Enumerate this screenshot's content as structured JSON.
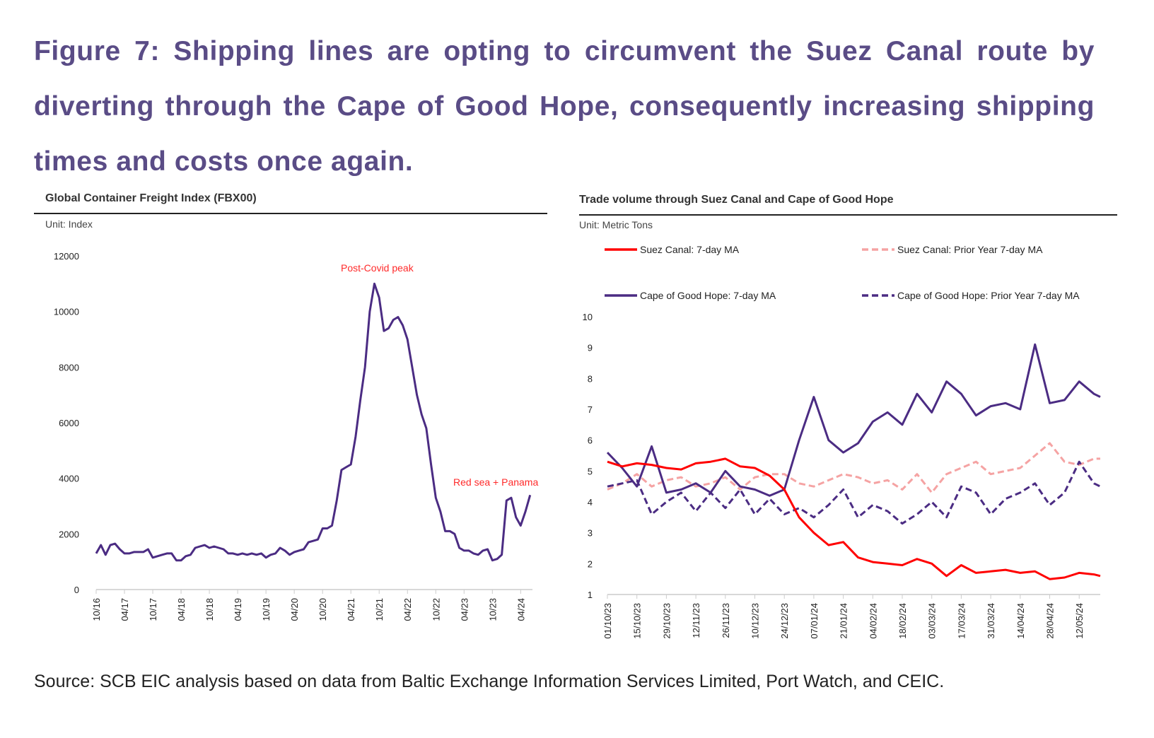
{
  "figure_title": "Figure 7: Shipping lines are opting to circumvent the Suez Canal route by diverting through the Cape of Good Hope, consequently increasing shipping times and costs once again.",
  "source": "Source: SCB EIC analysis based on data from Baltic Exchange Information Services Limited, Port Watch, and CEIC.",
  "colors": {
    "title": "#5a4c86",
    "purple": "#4b2c83",
    "red": "#ff0000",
    "pink": "#f5a3a3",
    "annotation": "#ff2a2a"
  },
  "chart_data": [
    {
      "type": "line",
      "title": "Global Container Freight Index (FBX00)",
      "unit": "Unit: Index",
      "ylim": [
        0,
        12000
      ],
      "yticks": [
        "0",
        "2000",
        "4000",
        "6000",
        "8000",
        "10000",
        "12000"
      ],
      "xticks": [
        "10/16",
        "04/17",
        "10/17",
        "04/18",
        "10/18",
        "04/19",
        "10/19",
        "04/20",
        "10/20",
        "04/21",
        "10/21",
        "04/22",
        "10/22",
        "04/23",
        "10/23",
        "04/24"
      ],
      "grid": false,
      "annotations": [
        {
          "text": "Post-Covid peak"
        },
        {
          "text": "Red sea + Panama"
        }
      ],
      "series": [
        {
          "color": "#4b2c83",
          "start": "2016-10",
          "values": [
            1300,
            1600,
            1250,
            1600,
            1650,
            1450,
            1300,
            1300,
            1350,
            1350,
            1350,
            1450,
            1150,
            1200,
            1250,
            1300,
            1300,
            1050,
            1050,
            1200,
            1250,
            1500,
            1550,
            1600,
            1500,
            1550,
            1500,
            1450,
            1300,
            1300,
            1250,
            1300,
            1250,
            1300,
            1250,
            1300,
            1150,
            1250,
            1300,
            1500,
            1400,
            1250,
            1350,
            1400,
            1450,
            1700,
            1750,
            1800,
            2200,
            2200,
            2300,
            3200,
            4300,
            4400,
            4500,
            5500,
            6800,
            8000,
            10000,
            11000,
            10500,
            9300,
            9400,
            9700,
            9800,
            9500,
            9000,
            8000,
            7000,
            6300,
            5800,
            4500,
            3300,
            2800,
            2100,
            2100,
            2000,
            1500,
            1400,
            1400,
            1300,
            1250,
            1400,
            1450,
            1050,
            1100,
            1250,
            3200,
            3300,
            2600,
            2300,
            2800,
            3400
          ]
        }
      ]
    },
    {
      "type": "line",
      "title": "Trade volume through Suez Canal and Cape of Good Hope",
      "unit": "Unit: Metric Tons",
      "ylim": [
        1,
        10
      ],
      "yticks": [
        "1",
        "2",
        "3",
        "4",
        "5",
        "6",
        "7",
        "8",
        "9",
        "10"
      ],
      "xticks": [
        "01/10/23",
        "15/10/23",
        "29/10/23",
        "12/11/23",
        "26/11/23",
        "10/12/23",
        "24/12/23",
        "07/01/24",
        "21/01/24",
        "04/02/24",
        "18/02/24",
        "03/03/24",
        "17/03/24",
        "31/03/24",
        "14/04/24",
        "28/04/24",
        "12/05/24"
      ],
      "grid": false,
      "legend": "top",
      "x": [
        "01/10/23",
        "08/10/23",
        "15/10/23",
        "22/10/23",
        "29/10/23",
        "05/11/23",
        "12/11/23",
        "19/11/23",
        "26/11/23",
        "03/12/23",
        "10/12/23",
        "17/12/23",
        "24/12/23",
        "31/12/23",
        "07/01/24",
        "14/01/24",
        "21/01/24",
        "28/01/24",
        "04/02/24",
        "11/02/24",
        "18/02/24",
        "25/02/24",
        "03/03/24",
        "10/03/24",
        "17/03/24",
        "24/03/24",
        "31/03/24",
        "07/04/24",
        "14/04/24",
        "21/04/24",
        "28/04/24",
        "05/05/24",
        "12/05/24",
        "19/05/24",
        "22/05/24"
      ],
      "series": [
        {
          "name": "Suez Canal: 7-day MA",
          "color": "#ff0000",
          "dash": false,
          "values": [
            5.3,
            5.15,
            5.25,
            5.2,
            5.1,
            5.05,
            5.25,
            5.3,
            5.4,
            5.15,
            5.1,
            4.85,
            4.4,
            3.5,
            3.0,
            2.6,
            2.7,
            2.2,
            2.05,
            2.0,
            1.95,
            2.15,
            2.0,
            1.6,
            1.95,
            1.7,
            1.75,
            1.8,
            1.7,
            1.75,
            1.5,
            1.55,
            1.7,
            1.65,
            1.6
          ]
        },
        {
          "name": "Suez Canal: Prior Year 7-day MA",
          "color": "#f5a3a3",
          "dash": true,
          "values": [
            4.4,
            4.6,
            4.9,
            4.5,
            4.7,
            4.8,
            4.5,
            4.6,
            4.8,
            4.4,
            4.8,
            4.9,
            4.9,
            4.6,
            4.5,
            4.7,
            4.9,
            4.8,
            4.6,
            4.7,
            4.4,
            4.9,
            4.3,
            4.9,
            5.1,
            5.3,
            4.9,
            5.0,
            5.1,
            5.5,
            5.9,
            5.3,
            5.2,
            5.4,
            5.4
          ]
        },
        {
          "name": "Cape of Good Hope: 7-day MA",
          "color": "#4b2c83",
          "dash": false,
          "values": [
            5.6,
            5.1,
            4.5,
            5.8,
            4.3,
            4.4,
            4.6,
            4.3,
            5.0,
            4.5,
            4.4,
            4.2,
            4.4,
            6.0,
            7.4,
            6.0,
            5.6,
            5.9,
            6.6,
            6.9,
            6.5,
            7.5,
            6.9,
            7.9,
            7.5,
            6.8,
            7.1,
            7.2,
            7.0,
            9.1,
            7.2,
            7.3,
            7.9,
            7.5,
            7.4
          ]
        },
        {
          "name": "Cape of Good Hope: Prior Year 7-day MA",
          "color": "#4b2c83",
          "dash": true,
          "values": [
            4.5,
            4.6,
            4.7,
            3.6,
            4.0,
            4.3,
            3.7,
            4.3,
            3.8,
            4.4,
            3.6,
            4.1,
            3.6,
            3.8,
            3.5,
            3.9,
            4.4,
            3.5,
            3.9,
            3.7,
            3.3,
            3.6,
            4.0,
            3.5,
            4.5,
            4.3,
            3.6,
            4.1,
            4.3,
            4.6,
            3.9,
            4.3,
            5.3,
            4.6,
            4.5
          ]
        }
      ]
    }
  ]
}
